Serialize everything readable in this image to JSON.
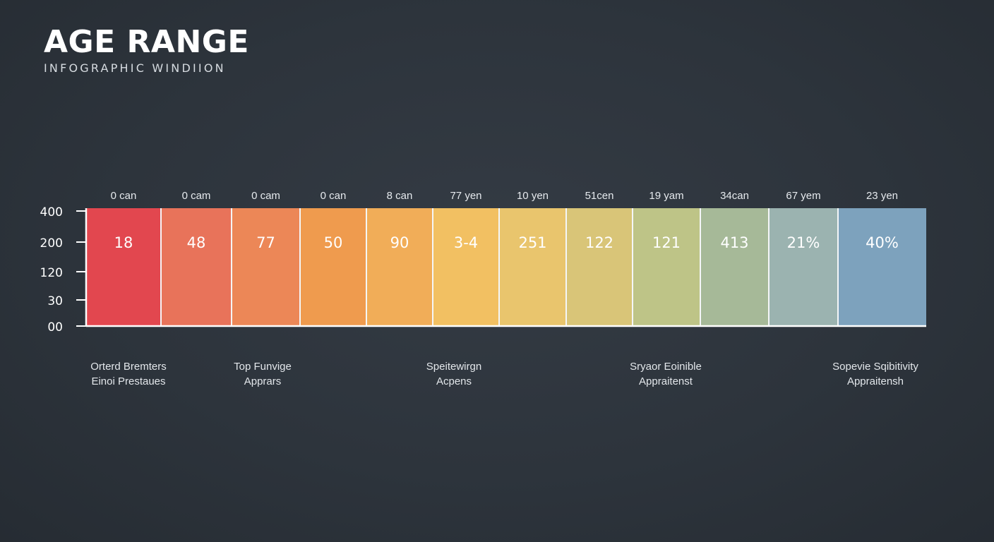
{
  "title": "AGE RANGE",
  "subtitle": "INFOGRAPHIC WINDIION",
  "chart_data": {
    "type": "bar",
    "categories": [
      "0 can",
      "0 cam",
      "0 cam",
      "0 can",
      "8 can",
      "77 yen",
      "10 yen",
      "51cen",
      "19 yam",
      "34can",
      "67 yem",
      "23 yen"
    ],
    "values": [
      "18",
      "48",
      "77",
      "50",
      "90",
      "3-4",
      "251",
      "122",
      "121",
      "413",
      "21%",
      "40%"
    ],
    "y_ticks": [
      "400",
      "200",
      "120",
      "30",
      "00"
    ],
    "colors": [
      "#e2474f",
      "#e8735a",
      "#ec8757",
      "#ef9b4e",
      "#f1ad58",
      "#f2c062",
      "#e9c56d",
      "#d9c578",
      "#bec487",
      "#a6b998",
      "#9bb3b0",
      "#7da2bd"
    ],
    "grid": false
  },
  "annotations": [
    {
      "line1": "Orterd Bremters",
      "line2": "Einoi Prestaues"
    },
    {
      "line1": "Top Funvige",
      "line2": "Apprars"
    },
    {
      "line1": "Speitewirgn",
      "line2": "Acpens"
    },
    {
      "line1": "Sryaor Eoinible",
      "line2": "Appraitenst"
    },
    {
      "line1": "Sopevie Sqibitivity",
      "line2": "Appraitensh"
    }
  ]
}
